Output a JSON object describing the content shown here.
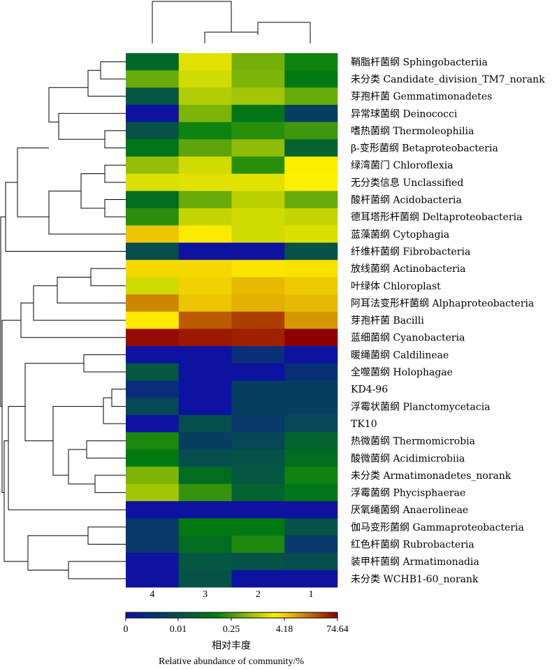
{
  "chart_data": {
    "type": "heatmap",
    "columns": [
      "4",
      "3",
      "2",
      "1"
    ],
    "rows": [
      "鞘脂杆菌纲 Sphingobacteriia",
      "未分类 Candidate_division_TM7_norank",
      "芽孢杆菌 Gemmatimonadetes",
      "异常球菌纲 Deinococci",
      "嗜热菌纲 Thermoleophilia",
      "β-变形菌纲 Betaproteobacteria",
      "绿湾菌门 Chloroflexia",
      "无分类信息 Unclassified",
      "酸杆菌纲 Acidobacteria",
      "德耳塔形杆菌纲 Deltaproteobacteria",
      "蓝藻菌纲 Cytophagia",
      "纤维杆菌纲 Fibrobacteria",
      "放线菌纲 Actinobacteria",
      "叶绿体 Chloroplast",
      "阿耳法变形杆菌纲 Alphaproteobacteria",
      "芽孢杆菌 Bacilli",
      "蓝细菌纲 Cyanobacteria",
      "暖绳菌纲 Caldilineae",
      "全噬菌纲 Holophagae",
      "KD4-96",
      "浮霉状菌纲 Planctomycetacia",
      "TK10",
      "热微菌纲 Thermomicrobia",
      "酸微菌纲 Acidimicrobiia",
      "未分类 Armatimonadetes_norank",
      "浮霉菌纲 Phycisphaerae",
      "厌氧绳菌纲 Anaerolineae",
      "伽马变形菌纲 Gammaproteobacteria",
      "红色杆菌纲 Rubrobacteria",
      "装甲杆菌纲 Armatimonadia",
      "未分类 WCHB1-60_norank"
    ],
    "values": [
      [
        0.12,
        3.0,
        0.9,
        0.3
      ],
      [
        0.8,
        2.5,
        1.0,
        0.25
      ],
      [
        0.06,
        1.8,
        1.5,
        0.8
      ],
      [
        0.0,
        1.0,
        0.2,
        0.02
      ],
      [
        0.05,
        0.3,
        0.4,
        0.5
      ],
      [
        0.2,
        0.7,
        1.2,
        0.1
      ],
      [
        1.3,
        2.5,
        0.4,
        4.0
      ],
      [
        2.8,
        3.0,
        3.0,
        4.18
      ],
      [
        0.15,
        0.8,
        2.0,
        0.8
      ],
      [
        0.4,
        2.2,
        2.5,
        2.2
      ],
      [
        7.0,
        4.5,
        2.5,
        2.8
      ],
      [
        0.04,
        0.0,
        0.0,
        0.05
      ],
      [
        5.5,
        5.5,
        4.8,
        5.0
      ],
      [
        2.5,
        6.0,
        8.0,
        6.5
      ],
      [
        15.0,
        7.0,
        9.0,
        8.0
      ],
      [
        4.5,
        25.0,
        35.0,
        12.0
      ],
      [
        65.0,
        55.0,
        50.0,
        74.64
      ],
      [
        0.0,
        0.0,
        0.008,
        0.0
      ],
      [
        0.06,
        0.0,
        0.0,
        0.009
      ],
      [
        0.008,
        0.0,
        0.02,
        0.02
      ],
      [
        0.03,
        0.0,
        0.02,
        0.02
      ],
      [
        0.0,
        0.04,
        0.015,
        0.03
      ],
      [
        0.35,
        0.02,
        0.03,
        0.1
      ],
      [
        0.25,
        0.04,
        0.05,
        0.15
      ],
      [
        1.0,
        0.15,
        0.06,
        0.3
      ],
      [
        1.5,
        0.45,
        0.1,
        0.2
      ],
      [
        0.0,
        0.0,
        0.0,
        0.0
      ],
      [
        0.015,
        0.25,
        0.25,
        0.05
      ],
      [
        0.015,
        0.15,
        0.35,
        0.015
      ],
      [
        0.0,
        0.06,
        0.05,
        0.04
      ],
      [
        0.0,
        0.05,
        0.0,
        0.0
      ]
    ],
    "colorbar": {
      "tick_labels": [
        "0",
        "0.01",
        "0.25",
        "4.18",
        "74.64"
      ],
      "tick_values": [
        0,
        0.01,
        0.25,
        4.18,
        74.64
      ],
      "stops": [
        "#0d12a0",
        "#007a10",
        "#fff000",
        "#8f0000"
      ],
      "label_cn": "相对丰度",
      "label_en": "Relative abundance of community/%"
    },
    "row_dendrogram": true,
    "column_dendrogram": true
  }
}
